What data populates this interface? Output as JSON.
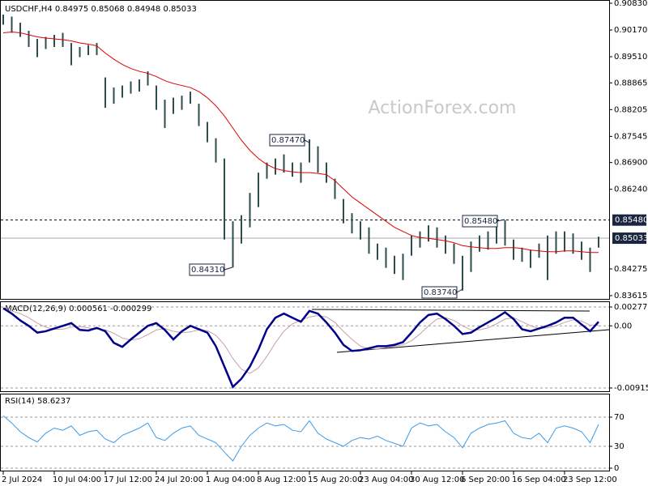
{
  "watermark": "ActionForex.com",
  "chart_data": [
    {
      "type": "ohlc",
      "title": "USDCHF,H4 0.84975 0.85068 0.84948 0.85033",
      "categories": [
        "2 Jul 2024",
        null,
        null,
        null,
        null,
        null,
        "10 Jul 04:00",
        null,
        null,
        null,
        null,
        null,
        "17 Jul 12:00",
        null,
        null,
        null,
        null,
        null,
        "24 Jul 20:00",
        null,
        null,
        null,
        null,
        null,
        "1 Aug 04:00",
        null,
        null,
        null,
        null,
        null,
        "8 Aug 12:00",
        null,
        null,
        null,
        null,
        null,
        "15 Aug 20:00",
        null,
        null,
        null,
        null,
        null,
        "23 Aug 04:00",
        null,
        null,
        null,
        null,
        null,
        "30 Aug 12:00",
        null,
        null,
        null,
        null,
        null,
        "6 Sep 20:00",
        null,
        null,
        null,
        null,
        null,
        "16 Sep 04:00",
        null,
        null,
        null,
        null,
        null,
        "23 Sep 12:00",
        null,
        null,
        null,
        null
      ],
      "high": [
        0.9055,
        0.905,
        0.9035,
        0.9015,
        0.8995,
        0.9,
        0.9005,
        0.901,
        0.8985,
        0.8975,
        0.898,
        0.8985,
        0.89,
        0.8875,
        0.888,
        0.889,
        0.8895,
        0.8915,
        0.888,
        0.8845,
        0.885,
        0.8855,
        0.8865,
        0.8835,
        0.879,
        0.875,
        0.87,
        0.8545,
        0.856,
        0.8615,
        0.8665,
        0.869,
        0.87,
        0.871,
        0.869,
        0.869,
        0.8747,
        0.873,
        0.869,
        0.865,
        0.86,
        0.8565,
        0.8545,
        0.853,
        0.849,
        0.848,
        0.846,
        0.8465,
        0.851,
        0.852,
        0.8535,
        0.853,
        0.851,
        0.849,
        0.846,
        0.8495,
        0.851,
        0.852,
        0.854,
        0.8548,
        0.85,
        0.848,
        0.8475,
        0.849,
        0.851,
        0.852,
        0.852,
        0.8515,
        0.8495,
        0.848,
        0.8507
      ],
      "low": [
        0.903,
        0.901,
        0.9,
        0.8975,
        0.895,
        0.897,
        0.8975,
        0.8975,
        0.893,
        0.895,
        0.8955,
        0.8955,
        0.8825,
        0.8835,
        0.885,
        0.886,
        0.8865,
        0.888,
        0.882,
        0.8775,
        0.881,
        0.882,
        0.8835,
        0.878,
        0.874,
        0.869,
        0.85,
        0.8431,
        0.849,
        0.853,
        0.858,
        0.865,
        0.866,
        0.8665,
        0.8655,
        0.864,
        0.869,
        0.8665,
        0.864,
        0.86,
        0.854,
        0.8515,
        0.85,
        0.8465,
        0.845,
        0.843,
        0.8415,
        0.84,
        0.846,
        0.848,
        0.8495,
        0.848,
        0.8465,
        0.844,
        0.8374,
        0.842,
        0.847,
        0.8475,
        0.849,
        0.8485,
        0.845,
        0.8445,
        0.843,
        0.8455,
        0.84,
        0.8465,
        0.847,
        0.8465,
        0.845,
        0.842,
        0.848
      ],
      "color": "#2e4d4d",
      "ma": [
        0.901,
        0.9012,
        0.901,
        0.9005,
        0.9,
        0.8997,
        0.8995,
        0.8993,
        0.899,
        0.8985,
        0.8982,
        0.8978,
        0.896,
        0.8945,
        0.8932,
        0.8922,
        0.8915,
        0.891,
        0.8902,
        0.8892,
        0.8885,
        0.888,
        0.8875,
        0.8865,
        0.885,
        0.883,
        0.8805,
        0.8775,
        0.8745,
        0.872,
        0.87,
        0.8685,
        0.8675,
        0.867,
        0.8667,
        0.8665,
        0.8665,
        0.8663,
        0.866,
        0.8645,
        0.8625,
        0.8605,
        0.859,
        0.8575,
        0.856,
        0.8545,
        0.853,
        0.852,
        0.851,
        0.8505,
        0.8503,
        0.85,
        0.8497,
        0.8492,
        0.8485,
        0.8482,
        0.848,
        0.8478,
        0.8478,
        0.848,
        0.848,
        0.8478,
        0.8474,
        0.8472,
        0.847,
        0.847,
        0.8472,
        0.8472,
        0.847,
        0.8468,
        0.8468
      ],
      "ma_color": "#dd0000",
      "ylim": [
        0.83615,
        0.9083
      ],
      "yticks": [
        {
          "value": 0.9083,
          "label": "0.90830"
        },
        {
          "value": 0.9017,
          "label": "0.90170"
        },
        {
          "value": 0.8951,
          "label": "0.89510"
        },
        {
          "value": 0.88865,
          "label": "0.88865"
        },
        {
          "value": 0.88205,
          "label": "0.88205"
        },
        {
          "value": 0.87545,
          "label": "0.87545"
        },
        {
          "value": 0.869,
          "label": "0.86900"
        },
        {
          "value": 0.8624,
          "label": "0.86240"
        },
        {
          "value": 0.84275,
          "label": "0.84275"
        },
        {
          "value": 0.83615,
          "label": "0.83615"
        }
      ],
      "levels": [
        {
          "value": 0.8548,
          "label": "0.85480"
        },
        {
          "value": 0.85033,
          "label": "0.85033"
        }
      ],
      "annotations": [
        "0.87470",
        "0.84310",
        "0.83740",
        "0.85480"
      ]
    },
    {
      "type": "line",
      "title": "MACD(12,26,9) 0.000561 -0.000299",
      "values": [
        0.0026,
        0.0018,
        0.0008,
        0.0,
        -0.001,
        -0.0008,
        -0.0004,
        0.0,
        0.0004,
        -0.0006,
        -0.0007,
        -0.0003,
        -0.0008,
        -0.0025,
        -0.0031,
        -0.002,
        -0.001,
        0.0,
        0.0004,
        -0.0006,
        -0.002,
        -0.0008,
        0.0,
        -0.0005,
        -0.001,
        -0.003,
        -0.006,
        -0.009,
        -0.0078,
        -0.006,
        -0.0035,
        -0.0005,
        0.0012,
        0.0018,
        0.0012,
        0.0006,
        0.0022,
        0.0018,
        0.0005,
        -0.001,
        -0.0028,
        -0.0037,
        -0.0036,
        -0.0033,
        -0.003,
        -0.003,
        -0.0028,
        -0.0024,
        -0.001,
        0.0005,
        0.0016,
        0.0018,
        0.001,
        0.0,
        -0.0012,
        -0.001,
        -0.0002,
        0.0005,
        0.0012,
        0.002,
        0.001,
        -0.0005,
        -0.0008,
        -0.0004,
        0.0,
        0.0005,
        0.0012,
        0.0012,
        0.0002,
        -0.0008,
        0.0006
      ],
      "color": "#00008b",
      "signal": [
        0.0024,
        0.0022,
        0.0018,
        0.0012,
        0.0004,
        -0.0002,
        -0.0005,
        -0.0005,
        -0.0002,
        -0.0001,
        -0.0003,
        -0.0005,
        -0.0006,
        -0.0011,
        -0.0018,
        -0.0021,
        -0.0019,
        -0.0013,
        -0.0006,
        -0.0004,
        -0.0008,
        -0.001,
        -0.0009,
        -0.0006,
        -0.0007,
        -0.0014,
        -0.0028,
        -0.0048,
        -0.0064,
        -0.007,
        -0.0062,
        -0.0045,
        -0.0025,
        -0.0008,
        0.0003,
        0.0008,
        0.0013,
        0.0015,
        0.0013,
        0.0005,
        -0.0008,
        -0.002,
        -0.003,
        -0.0034,
        -0.0034,
        -0.0032,
        -0.003,
        -0.0028,
        -0.0022,
        -0.0012,
        0.0,
        0.001,
        0.0012,
        0.0008,
        0.0,
        -0.0006,
        -0.0006,
        -0.0003,
        0.0003,
        0.001,
        0.0012,
        0.0006,
        0.0,
        -0.0004,
        -0.0003,
        0.0,
        0.0005,
        0.0009,
        0.0007,
        0.0001,
        0.0001
      ],
      "signal_color": "#c9a0a8",
      "ylim": [
        -0.009159,
        0.002776
      ],
      "yticks": [
        0.002776,
        {
          "value": 0,
          "label": "0.00"
        },
        -0.009159
      ]
    },
    {
      "type": "line",
      "title": "RSI(14) 58.6237",
      "values": [
        72,
        62,
        50,
        42,
        36,
        48,
        55,
        52,
        58,
        45,
        50,
        52,
        40,
        35,
        45,
        50,
        55,
        62,
        42,
        38,
        48,
        55,
        58,
        45,
        40,
        35,
        22,
        10,
        30,
        45,
        55,
        62,
        58,
        60,
        52,
        50,
        65,
        48,
        40,
        35,
        30,
        38,
        42,
        40,
        44,
        38,
        34,
        30,
        55,
        62,
        58,
        60,
        50,
        42,
        28,
        48,
        55,
        60,
        62,
        65,
        48,
        42,
        40,
        48,
        35,
        55,
        58,
        55,
        50,
        35,
        60
      ],
      "color": "#3d9be9",
      "ylim": [
        0,
        100
      ],
      "yticks": [
        70,
        30,
        0
      ]
    }
  ]
}
